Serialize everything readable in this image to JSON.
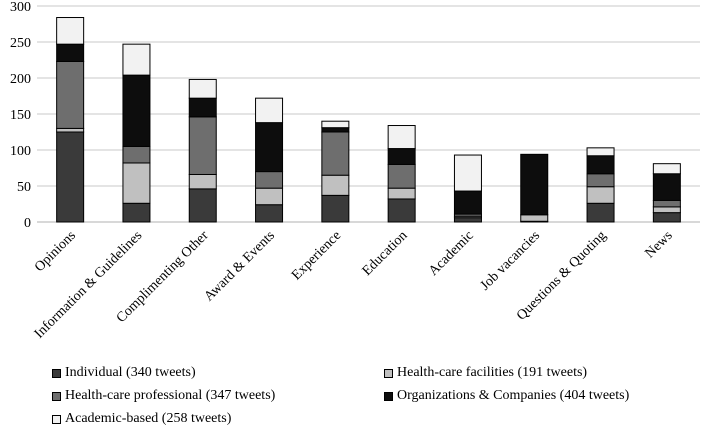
{
  "chart_data": {
    "type": "bar",
    "stacked": true,
    "title": "",
    "xlabel": "",
    "ylabel": "",
    "ylim": [
      0,
      300
    ],
    "yticks": [
      0,
      50,
      100,
      150,
      200,
      250,
      300
    ],
    "grid": "horizontal",
    "legend_position": "bottom",
    "categories": [
      "Opinions",
      "Information & Guidelines",
      "Complimenting Other",
      "Award & Events",
      "Experience",
      "Education",
      "Academic",
      "Job vacancies",
      "Questions & Quoting",
      "News"
    ],
    "series": [
      {
        "name": "Individual (340 tweets)",
        "color": "#3a3a3a",
        "values": [
          125,
          26,
          46,
          24,
          37,
          32,
          6,
          1,
          26,
          13
        ]
      },
      {
        "name": "Health-care facilities (191 tweets)",
        "color": "#c0c0c0",
        "values": [
          5,
          56,
          20,
          23,
          28,
          15,
          2,
          9,
          23,
          8
        ]
      },
      {
        "name": "Health-care professional (347 tweets)",
        "color": "#6e6e6e",
        "values": [
          93,
          23,
          80,
          23,
          60,
          33,
          3,
          0,
          18,
          9
        ]
      },
      {
        "name": "Organizations & Companies (404 tweets)",
        "color": "#0d0d0d",
        "values": [
          24,
          99,
          26,
          68,
          6,
          22,
          32,
          84,
          25,
          37
        ]
      },
      {
        "name": "Academic-based (258 tweets)",
        "color": "#f2f2f2",
        "values": [
          37,
          43,
          26,
          34,
          9,
          32,
          50,
          0,
          11,
          14
        ]
      }
    ]
  }
}
